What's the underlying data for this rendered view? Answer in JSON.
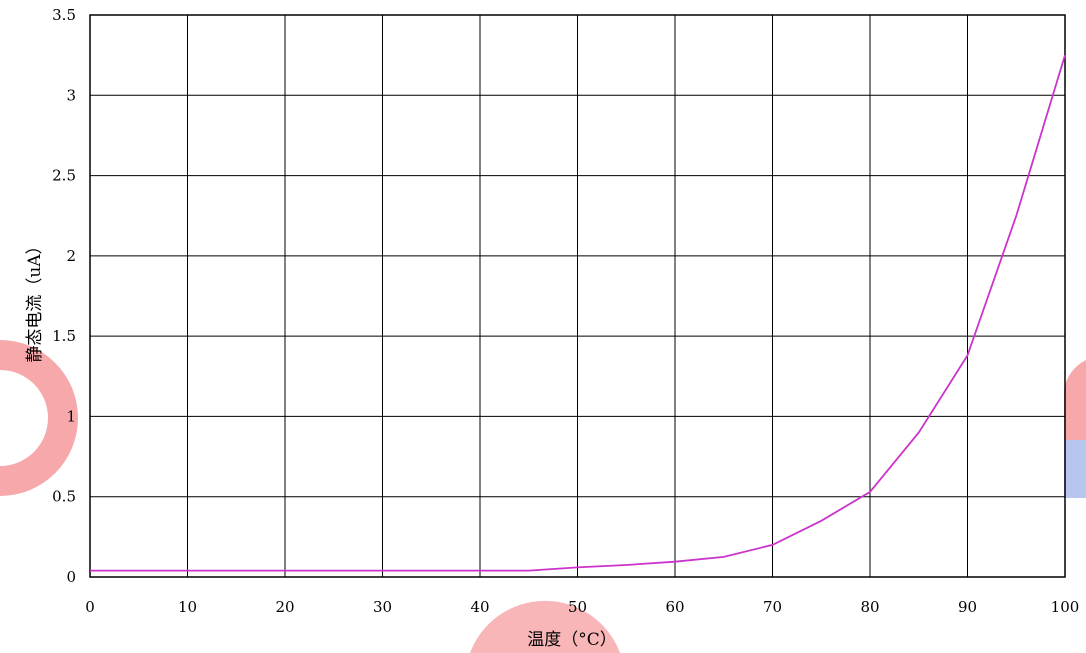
{
  "chart_data": {
    "type": "line",
    "xlabel": "温度（°C）",
    "ylabel": "静态电流（uA）",
    "xlim": [
      0,
      100
    ],
    "ylim": [
      0,
      3.5
    ],
    "x_ticks": [
      "0",
      "10",
      "20",
      "30",
      "40",
      "50",
      "60",
      "70",
      "80",
      "90",
      "100"
    ],
    "y_ticks": [
      "0",
      "0.5",
      "1",
      "1.5",
      "2",
      "2.5",
      "3",
      "3.5"
    ],
    "grid": true,
    "series": [
      {
        "x": [
          0,
          10,
          20,
          30,
          40,
          45,
          50,
          55,
          60,
          65,
          70,
          75,
          80,
          85,
          90,
          95,
          100
        ],
        "y": [
          0.04,
          0.04,
          0.04,
          0.04,
          0.04,
          0.04,
          0.06,
          0.075,
          0.095,
          0.125,
          0.2,
          0.35,
          0.53,
          0.9,
          1.38,
          2.25,
          3.25
        ],
        "color": "#cc33cc"
      }
    ]
  }
}
